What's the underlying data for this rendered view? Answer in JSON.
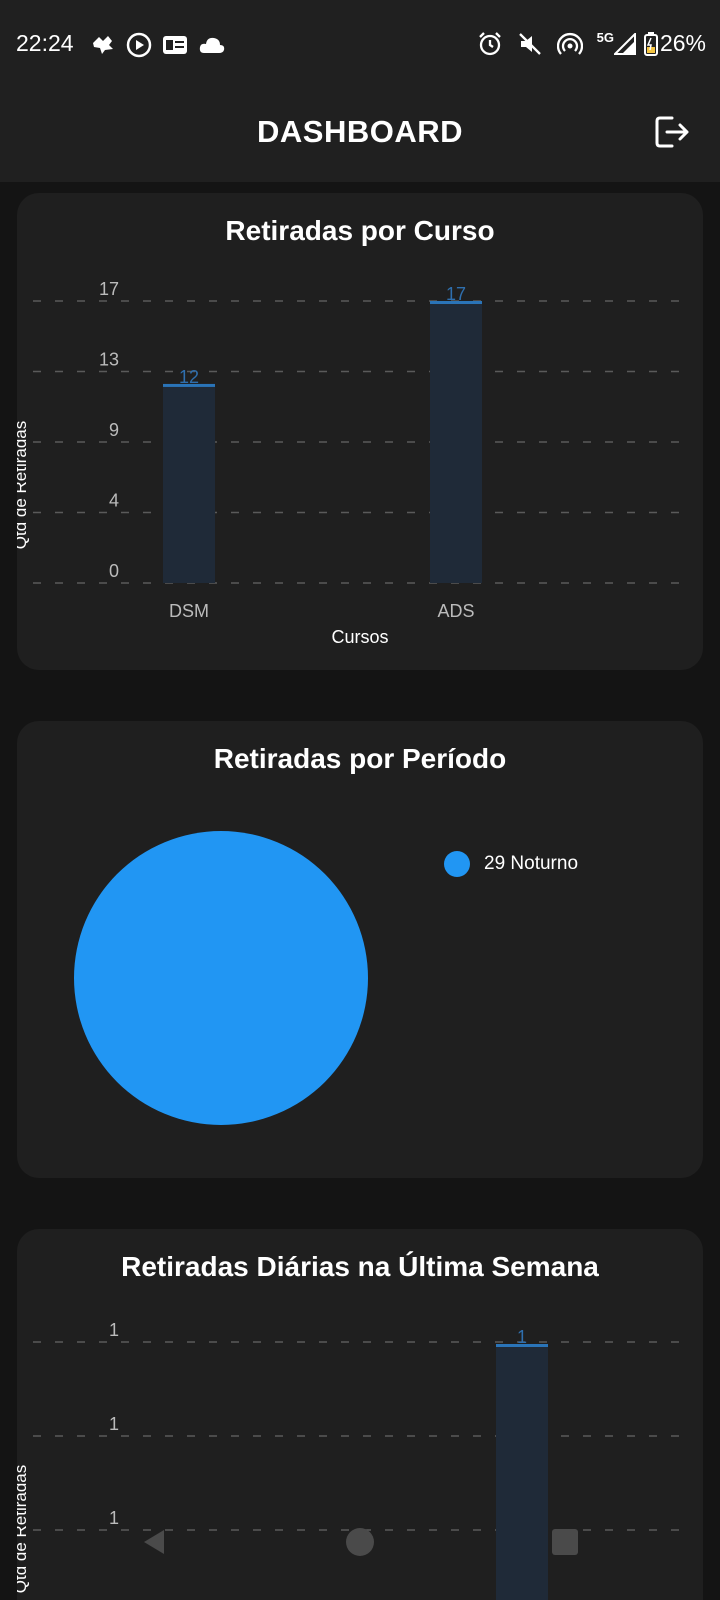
{
  "status": {
    "time": "22:24",
    "battery": "26%",
    "network": "5G"
  },
  "header": {
    "title": "DASHBOARD",
    "logout_icon": "logout-icon"
  },
  "cards": {
    "courses": {
      "title": "Retiradas por Curso"
    },
    "period": {
      "title": "Retiradas por Período"
    },
    "daily": {
      "title": "Retiradas Diárias na Última Semana"
    }
  },
  "colors": {
    "bg": "#141414",
    "card": "#1f1f1f",
    "bar_fill": "#1f2a38",
    "bar_top": "#2a74b8",
    "pie": "#2196f3",
    "grid": "#5a5a5a",
    "label_value": "#2f6fae"
  },
  "chart_data": [
    {
      "type": "bar",
      "title": "Retiradas por Curso",
      "categories": [
        "DSM",
        "ADS"
      ],
      "values": [
        12,
        17
      ],
      "xlabel": "Cursos",
      "ylabel": "Qtd de Retiradas",
      "yticks": [
        "0",
        "4",
        "9",
        "13",
        "17"
      ],
      "ylim": [
        0,
        17
      ],
      "grid": true
    },
    {
      "type": "pie",
      "title": "Retiradas por Período",
      "slices": [
        {
          "label": "Noturno",
          "value": 29,
          "legend": "29 Noturno"
        }
      ],
      "legend_position": "right"
    },
    {
      "type": "bar",
      "title": "Retiradas Diárias na Última Semana",
      "ylabel": "Qtd de Retiradas",
      "yticks": [
        "1",
        "1",
        "1"
      ],
      "values_visible": [
        {
          "label": "1",
          "value": 1
        }
      ],
      "grid": true
    }
  ]
}
